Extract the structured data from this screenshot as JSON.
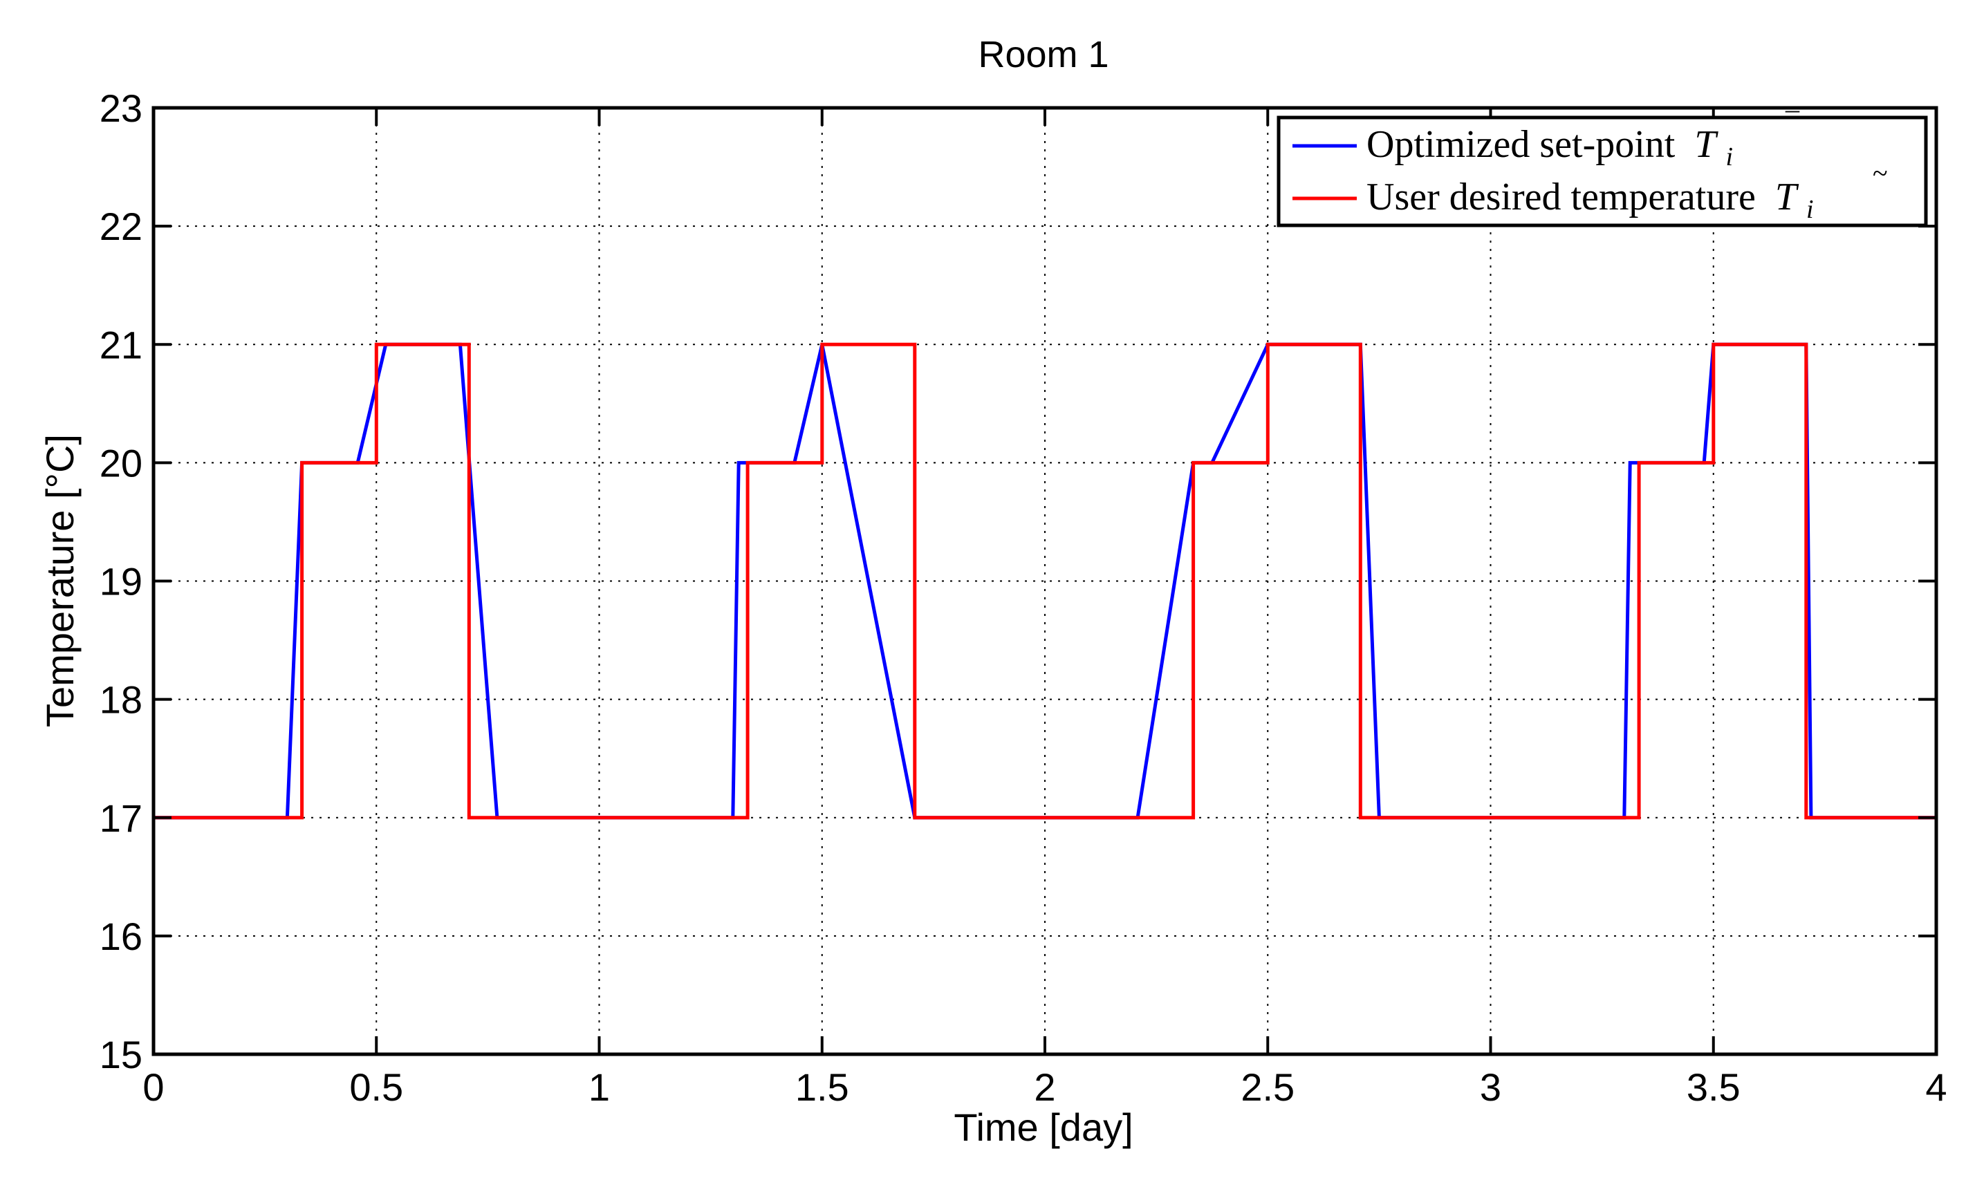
{
  "chart_data": {
    "type": "line",
    "title": "Room 1",
    "xlabel": "Time [day]",
    "ylabel": "Temperature [°C]",
    "xlim": [
      0,
      4
    ],
    "ylim": [
      15,
      23
    ],
    "xticks": [
      0,
      0.5,
      1,
      1.5,
      2,
      2.5,
      3,
      3.5,
      4
    ],
    "xtick_labels": [
      "0",
      "0.5",
      "1",
      "1.5",
      "2",
      "2.5",
      "3",
      "3.5",
      "4"
    ],
    "yticks": [
      15,
      16,
      17,
      18,
      19,
      20,
      21,
      22,
      23
    ],
    "ytick_labels": [
      "15",
      "16",
      "17",
      "18",
      "19",
      "20",
      "21",
      "22",
      "23"
    ],
    "grid": true,
    "legend_position": "top-right",
    "series": [
      {
        "name": "Optimized set-point",
        "legend_symbol": "T",
        "legend_accent": "¯",
        "legend_subscript": "i",
        "color": "#0000ff",
        "x": [
          0,
          0.3,
          0.333,
          0.458,
          0.521,
          0.688,
          0.771,
          1.3,
          1.313,
          1.333,
          1.438,
          1.5,
          1.708,
          2.208,
          2.333,
          2.375,
          2.5,
          2.708,
          2.75,
          3.3,
          3.313,
          3.333,
          3.479,
          3.5,
          3.708,
          3.719,
          4
        ],
        "y": [
          17,
          17,
          20,
          20,
          21,
          21,
          17,
          17,
          20,
          20,
          20,
          21,
          17,
          17,
          20,
          20,
          21,
          21,
          17,
          17,
          20,
          20,
          20,
          21,
          21,
          17,
          17
        ]
      },
      {
        "name": "User desired temperature",
        "legend_symbol": "T",
        "legend_accent": "~",
        "legend_subscript": "i",
        "color": "#ff0000",
        "x": [
          0,
          0.333,
          0.333,
          0.5,
          0.5,
          0.708,
          0.708,
          1.333,
          1.333,
          1.5,
          1.5,
          1.708,
          1.708,
          2.333,
          2.333,
          2.5,
          2.5,
          2.708,
          2.708,
          3.333,
          3.333,
          3.5,
          3.5,
          3.708,
          3.708,
          4
        ],
        "y": [
          17,
          17,
          20,
          20,
          21,
          21,
          17,
          17,
          20,
          20,
          21,
          21,
          17,
          17,
          20,
          20,
          21,
          21,
          17,
          17,
          20,
          20,
          21,
          21,
          17,
          17
        ]
      }
    ]
  }
}
